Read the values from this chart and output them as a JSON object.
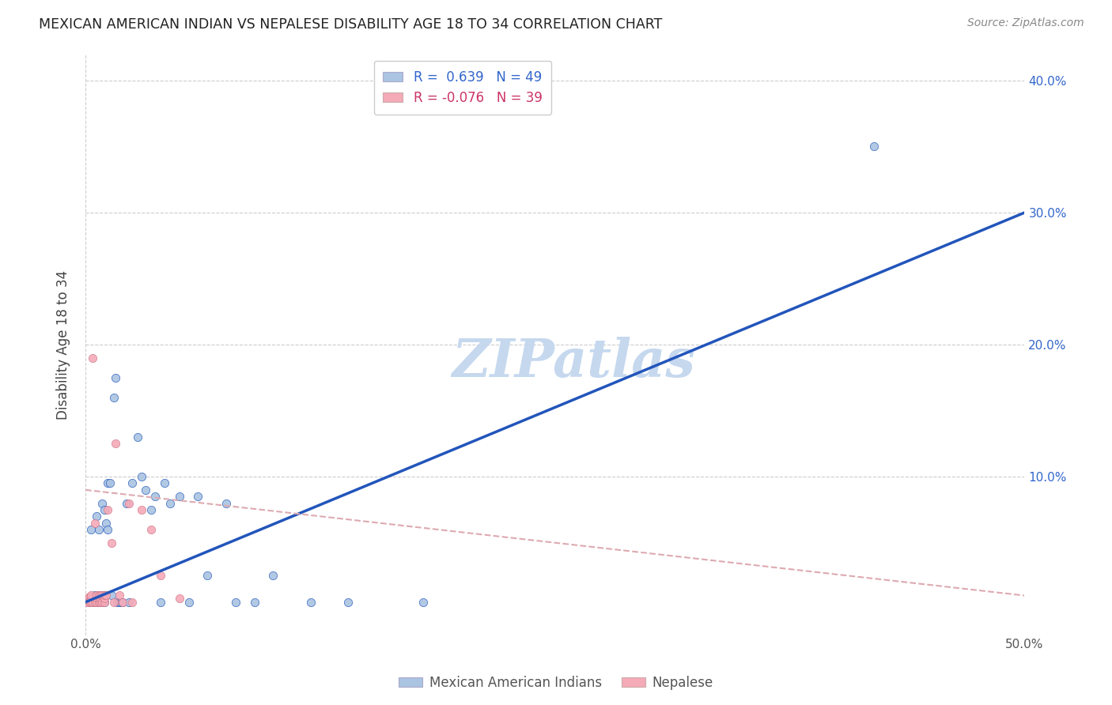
{
  "title": "MEXICAN AMERICAN INDIAN VS NEPALESE DISABILITY AGE 18 TO 34 CORRELATION CHART",
  "source": "Source: ZipAtlas.com",
  "ylabel": "Disability Age 18 to 34",
  "xlim": [
    0.0,
    0.5
  ],
  "ylim": [
    -0.02,
    0.42
  ],
  "xticks": [
    0.0,
    0.1,
    0.2,
    0.3,
    0.4,
    0.5
  ],
  "xticklabels": [
    "0.0%",
    "",
    "",
    "",
    "",
    "50.0%"
  ],
  "ytick_labels_right": [
    "10.0%",
    "20.0%",
    "30.0%",
    "40.0%"
  ],
  "ytick_values_right": [
    0.1,
    0.2,
    0.3,
    0.4
  ],
  "blue_R": 0.639,
  "blue_N": 49,
  "pink_R": -0.076,
  "pink_N": 39,
  "blue_color": "#aac4e2",
  "pink_color": "#f5aab8",
  "blue_line_color": "#2255bb",
  "pink_edge_color": "#cc7788",
  "pink_line_color": "#ddaab0",
  "watermark_text": "ZIPatlas",
  "watermark_color": "#c5d8ee",
  "blue_scatter_x": [
    0.002,
    0.003,
    0.003,
    0.004,
    0.005,
    0.006,
    0.006,
    0.007,
    0.007,
    0.008,
    0.009,
    0.009,
    0.01,
    0.01,
    0.01,
    0.011,
    0.012,
    0.012,
    0.013,
    0.014,
    0.015,
    0.016,
    0.017,
    0.018,
    0.019,
    0.02,
    0.022,
    0.023,
    0.025,
    0.028,
    0.03,
    0.032,
    0.035,
    0.037,
    0.04,
    0.042,
    0.045,
    0.05,
    0.055,
    0.06,
    0.065,
    0.075,
    0.08,
    0.09,
    0.1,
    0.12,
    0.14,
    0.18,
    0.42
  ],
  "blue_scatter_y": [
    0.005,
    0.008,
    0.06,
    0.005,
    0.01,
    0.005,
    0.07,
    0.06,
    0.01,
    0.005,
    0.005,
    0.08,
    0.005,
    0.01,
    0.075,
    0.065,
    0.06,
    0.095,
    0.095,
    0.01,
    0.16,
    0.175,
    0.005,
    0.005,
    0.005,
    0.005,
    0.08,
    0.005,
    0.095,
    0.13,
    0.1,
    0.09,
    0.075,
    0.085,
    0.005,
    0.095,
    0.08,
    0.085,
    0.005,
    0.085,
    0.025,
    0.08,
    0.005,
    0.005,
    0.025,
    0.005,
    0.005,
    0.005,
    0.35
  ],
  "pink_scatter_x": [
    0.001,
    0.001,
    0.002,
    0.002,
    0.002,
    0.003,
    0.003,
    0.003,
    0.004,
    0.004,
    0.005,
    0.005,
    0.006,
    0.006,
    0.006,
    0.007,
    0.007,
    0.007,
    0.008,
    0.008,
    0.008,
    0.009,
    0.009,
    0.01,
    0.01,
    0.01,
    0.011,
    0.012,
    0.014,
    0.015,
    0.016,
    0.018,
    0.02,
    0.023,
    0.025,
    0.03,
    0.035,
    0.04,
    0.05
  ],
  "pink_scatter_y": [
    0.005,
    0.008,
    0.005,
    0.007,
    0.009,
    0.005,
    0.008,
    0.01,
    0.005,
    0.19,
    0.005,
    0.065,
    0.005,
    0.008,
    0.01,
    0.005,
    0.008,
    0.01,
    0.005,
    0.008,
    0.01,
    0.005,
    0.01,
    0.005,
    0.008,
    0.01,
    0.01,
    0.075,
    0.05,
    0.005,
    0.125,
    0.01,
    0.005,
    0.08,
    0.005,
    0.075,
    0.06,
    0.025,
    0.008
  ],
  "blue_trendline_x": [
    0.0,
    0.5
  ],
  "blue_trendline_y": [
    0.005,
    0.3
  ],
  "pink_trendline_x": [
    0.0,
    0.5
  ],
  "pink_trendline_y": [
    0.09,
    0.01
  ]
}
